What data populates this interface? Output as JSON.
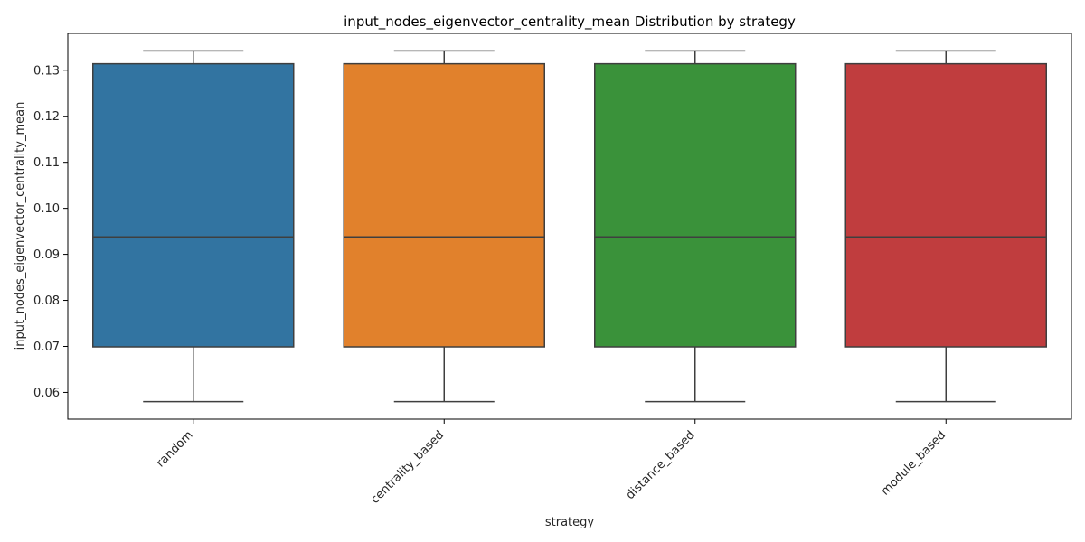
{
  "chart_data": {
    "type": "box",
    "title": "input_nodes_eigenvector_centrality_mean Distribution by strategy",
    "xlabel": "strategy",
    "ylabel": "input_nodes_eigenvector_centrality_mean",
    "categories": [
      "random",
      "centrality_based",
      "distance_based",
      "module_based"
    ],
    "colors": [
      "#3274a1",
      "#e1812c",
      "#3a923a",
      "#c03d3e"
    ],
    "boxes": [
      {
        "category": "random",
        "min": 0.058,
        "q1": 0.0699,
        "median": 0.0938,
        "q3": 0.1314,
        "max": 0.1342
      },
      {
        "category": "centrality_based",
        "min": 0.058,
        "q1": 0.0699,
        "median": 0.0938,
        "q3": 0.1314,
        "max": 0.1342
      },
      {
        "category": "distance_based",
        "min": 0.058,
        "q1": 0.0699,
        "median": 0.0938,
        "q3": 0.1314,
        "max": 0.1342
      },
      {
        "category": "module_based",
        "min": 0.058,
        "q1": 0.0699,
        "median": 0.0938,
        "q3": 0.1314,
        "max": 0.1342
      }
    ],
    "ylim": [
      0.0542,
      0.138
    ],
    "yticks": [
      "0.06",
      "0.07",
      "0.08",
      "0.09",
      "0.10",
      "0.11",
      "0.12",
      "0.13"
    ],
    "grid": false,
    "xtick_rotation": 45
  }
}
